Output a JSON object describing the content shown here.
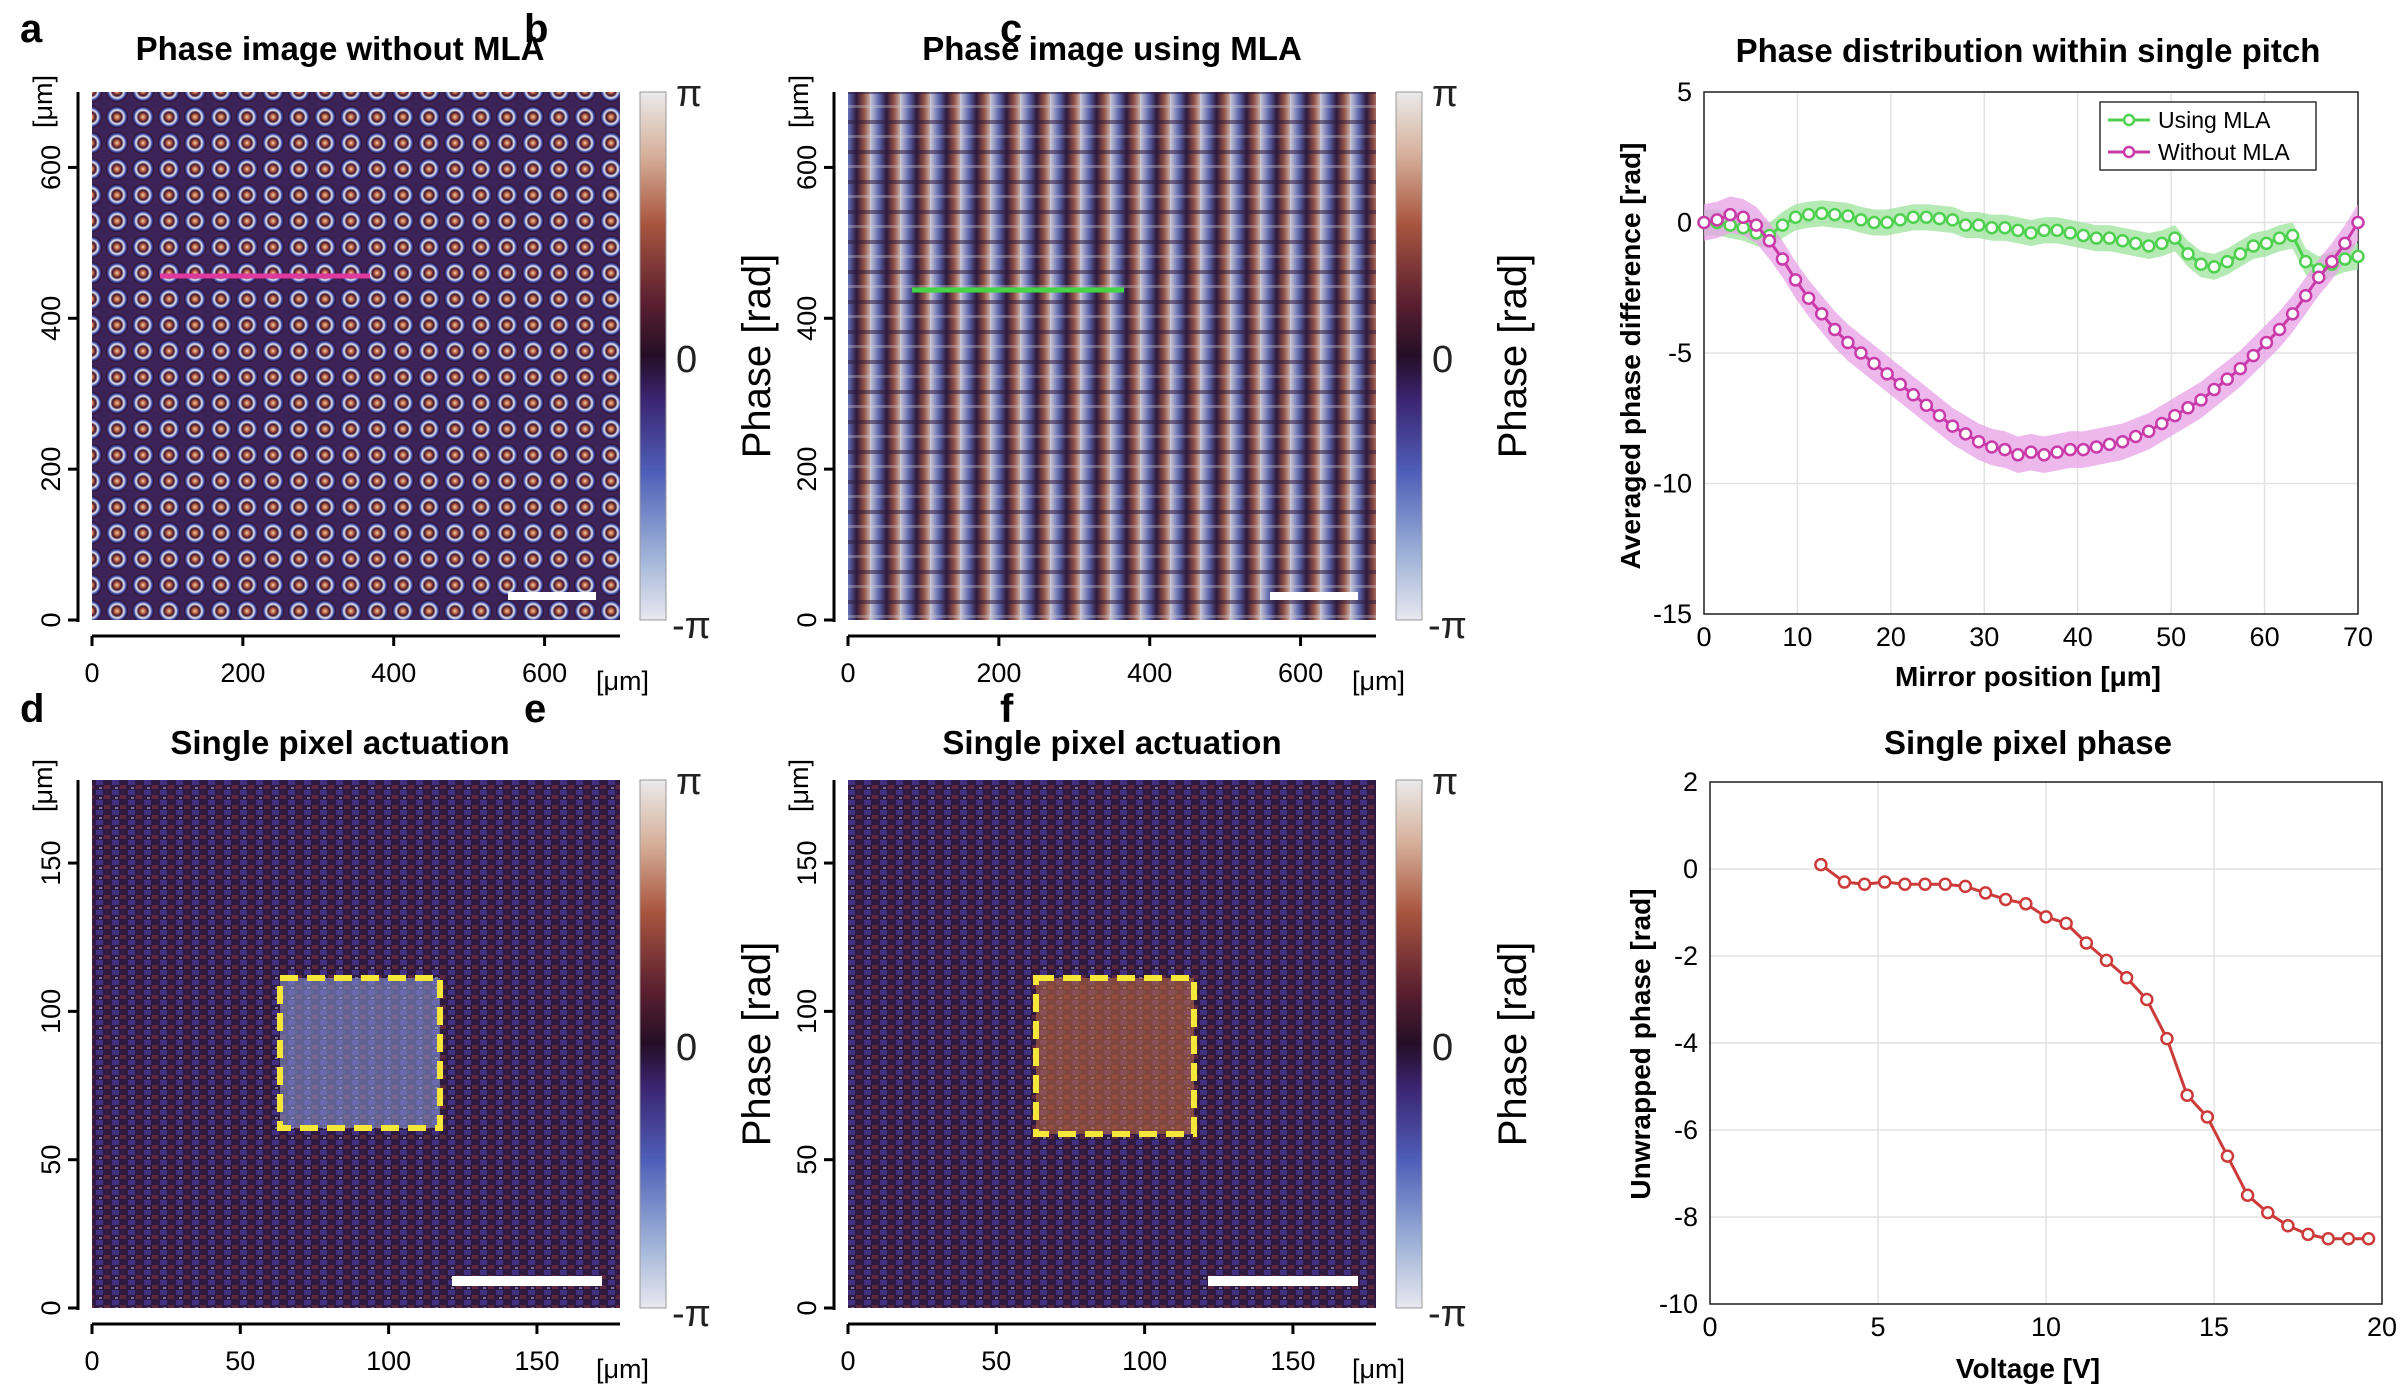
{
  "panel_labels": [
    "a",
    "b",
    "c",
    "d",
    "e",
    "f"
  ],
  "colorbar": {
    "top": "π",
    "mid": "0",
    "bottom": "-π",
    "label": "Phase [rad]"
  },
  "images": {
    "a": {
      "title": "Phase image without MLA",
      "unit": "[μm]",
      "xticks": [
        "0",
        "200",
        "400",
        "600"
      ],
      "yticks": [
        "0",
        "200",
        "400",
        "600"
      ]
    },
    "b": {
      "title": "Phase image using MLA",
      "unit": "[μm]",
      "xticks": [
        "0",
        "200",
        "400",
        "600"
      ],
      "yticks": [
        "0",
        "200",
        "400",
        "600"
      ]
    },
    "d": {
      "title": "Single pixel actuation",
      "unit": "[μm]",
      "xticks": [
        "0",
        "50",
        "100",
        "150"
      ],
      "yticks": [
        "0",
        "50",
        "100",
        "150"
      ]
    },
    "e": {
      "title": "Single pixel actuation",
      "unit": "[μm]",
      "xticks": [
        "0",
        "50",
        "100",
        "150"
      ],
      "yticks": [
        "0",
        "50",
        "100",
        "150"
      ]
    }
  },
  "chart_data": [
    {
      "id": "c",
      "type": "line",
      "title": "Phase distribution within single pitch",
      "xlabel": "Mirror position [μm]",
      "ylabel": "Averaged phase difference [rad]",
      "xlim": [
        0,
        70
      ],
      "ylim": [
        -15,
        5
      ],
      "xticks": [
        0,
        10,
        20,
        30,
        40,
        50,
        60,
        70
      ],
      "yticks": [
        5,
        0,
        -5,
        -10,
        -15
      ],
      "grid": true,
      "legend_position": "top-right",
      "series": [
        {
          "name": "Using MLA",
          "color": "#4fd14f",
          "band_color": "#9ce39c",
          "x": [
            0,
            1.4,
            2.8,
            4.2,
            5.6,
            7,
            8.4,
            9.8,
            11.2,
            12.6,
            14,
            15.4,
            16.8,
            18.2,
            19.6,
            21,
            22.4,
            23.8,
            25.2,
            26.6,
            28,
            29.4,
            30.8,
            32.2,
            33.6,
            35,
            36.4,
            37.8,
            39.2,
            40.6,
            42,
            43.4,
            44.8,
            46.2,
            47.6,
            49,
            50.4,
            51.8,
            53.2,
            54.6,
            56,
            57.4,
            58.8,
            60.2,
            61.6,
            63,
            64.4,
            65.8,
            67.2,
            68.6,
            70
          ],
          "y": [
            0,
            0,
            -0.1,
            -0.2,
            -0.4,
            -0.5,
            -0.1,
            0.2,
            0.3,
            0.35,
            0.3,
            0.25,
            0.1,
            0,
            0,
            0.1,
            0.2,
            0.2,
            0.15,
            0.1,
            -0.1,
            -0.1,
            -0.2,
            -0.2,
            -0.3,
            -0.4,
            -0.3,
            -0.3,
            -0.4,
            -0.5,
            -0.6,
            -0.6,
            -0.7,
            -0.8,
            -0.9,
            -0.8,
            -0.6,
            -1.2,
            -1.6,
            -1.7,
            -1.5,
            -1.2,
            -0.9,
            -0.8,
            -0.6,
            -0.5,
            -1.5,
            -1.8,
            -1.6,
            -1.4,
            -1.3
          ],
          "band": 0.5
        },
        {
          "name": "Without MLA",
          "color": "#c93ba8",
          "band_color": "#e7a2e7",
          "x": [
            0,
            1.4,
            2.8,
            4.2,
            5.6,
            7,
            8.4,
            9.8,
            11.2,
            12.6,
            14,
            15.4,
            16.8,
            18.2,
            19.6,
            21,
            22.4,
            23.8,
            25.2,
            26.6,
            28,
            29.4,
            30.8,
            32.2,
            33.6,
            35,
            36.4,
            37.8,
            39.2,
            40.6,
            42,
            43.4,
            44.8,
            46.2,
            47.6,
            49,
            50.4,
            51.8,
            53.2,
            54.6,
            56,
            57.4,
            58.8,
            60.2,
            61.6,
            63,
            64.4,
            65.8,
            67.2,
            68.6,
            70
          ],
          "y": [
            0,
            0.1,
            0.3,
            0.2,
            -0.1,
            -0.7,
            -1.4,
            -2.2,
            -2.9,
            -3.5,
            -4.1,
            -4.6,
            -5.0,
            -5.4,
            -5.8,
            -6.2,
            -6.6,
            -7.0,
            -7.4,
            -7.8,
            -8.1,
            -8.4,
            -8.6,
            -8.7,
            -8.9,
            -8.8,
            -8.9,
            -8.8,
            -8.7,
            -8.7,
            -8.6,
            -8.5,
            -8.4,
            -8.2,
            -8.0,
            -7.7,
            -7.4,
            -7.1,
            -6.8,
            -6.4,
            -6.0,
            -5.6,
            -5.1,
            -4.6,
            -4.1,
            -3.5,
            -2.8,
            -2.1,
            -1.5,
            -0.8,
            0
          ],
          "band": 0.7
        }
      ]
    },
    {
      "id": "f",
      "type": "line",
      "title": "Single pixel phase",
      "xlabel": "Voltage [V]",
      "ylabel": "Unwrapped phase [rad]",
      "xlim": [
        0,
        20
      ],
      "ylim": [
        -10,
        2
      ],
      "xticks": [
        0,
        5,
        10,
        15,
        20
      ],
      "yticks": [
        2,
        0,
        -2,
        -4,
        -6,
        -8,
        -10
      ],
      "grid": true,
      "series": [
        {
          "name": "Single pixel phase",
          "color": "#cc3a3a",
          "x": [
            3.3,
            4,
            4.6,
            5.2,
            5.8,
            6.4,
            7,
            7.6,
            8.2,
            8.8,
            9.4,
            10,
            10.6,
            11.2,
            11.8,
            12.4,
            13,
            13.6,
            14.2,
            14.8,
            15.4,
            16,
            16.6,
            17.2,
            17.8,
            18.4,
            19,
            19.6
          ],
          "y": [
            0.1,
            -0.3,
            -0.35,
            -0.3,
            -0.35,
            -0.35,
            -0.35,
            -0.4,
            -0.55,
            -0.7,
            -0.8,
            -1.1,
            -1.25,
            -1.7,
            -2.1,
            -2.5,
            -3.0,
            -3.9,
            -5.2,
            -5.7,
            -6.6,
            -7.5,
            -7.9,
            -8.2,
            -8.4,
            -8.5,
            -8.5,
            -8.5
          ]
        }
      ]
    }
  ]
}
